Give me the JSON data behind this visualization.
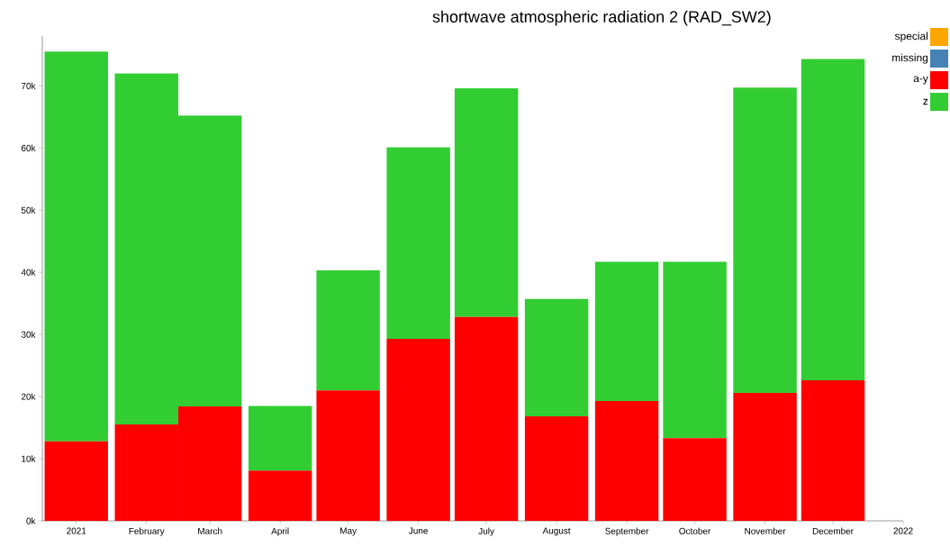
{
  "chart_data": {
    "type": "bar",
    "title": "shortwave atmospheric radiation 2 (RAD_SW2)",
    "stacked": true,
    "legend": "top right",
    "x": [
      "2021-01-01",
      "2021-02-01",
      "2021-03-01",
      "2021-04-01",
      "2021-05-01",
      "2021-06-01",
      "2021-07-01",
      "2021-08-01",
      "2021-09-01",
      "2021-10-01",
      "2021-11-01",
      "2021-12-01"
    ],
    "xlim": [
      "2020-12-17",
      "2022-01-01"
    ],
    "xticks": [
      {
        "value": "2021-01-01",
        "label": "2021"
      },
      {
        "value": "2021-02-01",
        "label": "February"
      },
      {
        "value": "2021-03-01",
        "label": "March"
      },
      {
        "value": "2021-04-01",
        "label": "April"
      },
      {
        "value": "2021-05-01",
        "label": "May"
      },
      {
        "value": "2021-06-01",
        "label": "June"
      },
      {
        "value": "2021-07-01",
        "label": "July"
      },
      {
        "value": "2021-08-01",
        "label": "August"
      },
      {
        "value": "2021-09-01",
        "label": "September"
      },
      {
        "value": "2021-10-01",
        "label": "October"
      },
      {
        "value": "2021-11-01",
        "label": "November"
      },
      {
        "value": "2021-12-01",
        "label": "December"
      },
      {
        "value": "2022-01-01",
        "label": "2022"
      }
    ],
    "ylim": [
      0,
      78000
    ],
    "yticks": [
      {
        "value": 0,
        "label": "0k"
      },
      {
        "value": 10000,
        "label": "10k"
      },
      {
        "value": 20000,
        "label": "20k"
      },
      {
        "value": 30000,
        "label": "30k"
      },
      {
        "value": 40000,
        "label": "40k"
      },
      {
        "value": 50000,
        "label": "50k"
      },
      {
        "value": 60000,
        "label": "60k"
      },
      {
        "value": 70000,
        "label": "70k"
      }
    ],
    "series": [
      {
        "name": "special",
        "color": "#ffa500",
        "values": [
          null,
          null,
          null,
          null,
          null,
          null,
          null,
          null,
          null,
          null,
          null,
          null
        ]
      },
      {
        "name": "missing",
        "color": "#4682b4",
        "values": [
          null,
          null,
          null,
          null,
          null,
          null,
          null,
          null,
          null,
          null,
          null,
          null
        ]
      },
      {
        "name": "a-y",
        "color": "#ff0000",
        "values": [
          12800,
          15500,
          18400,
          8100,
          21000,
          29300,
          32800,
          16800,
          19300,
          13300,
          20600,
          22600
        ]
      },
      {
        "name": "z",
        "color": "#32cd32",
        "values": [
          62700,
          56500,
          46800,
          10400,
          19300,
          30800,
          36800,
          18900,
          22400,
          28400,
          49100,
          51700
        ]
      }
    ]
  }
}
